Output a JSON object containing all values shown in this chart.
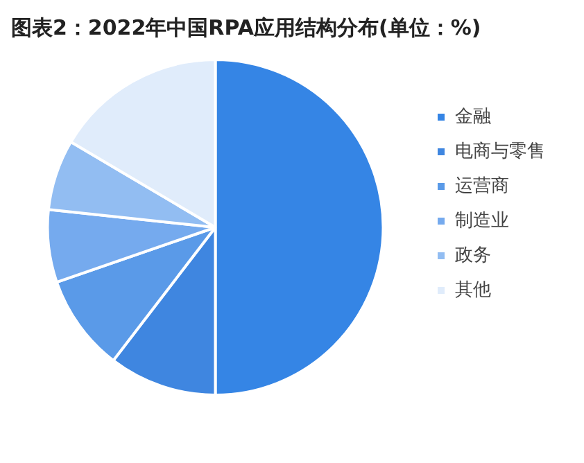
{
  "chart_data": {
    "type": "pie",
    "title": "图表2：2022年中国RPA应用结构分布(单位：%)",
    "categories": [
      "金融",
      "电商与零售",
      "运营商",
      "制造业",
      "政务",
      "其他"
    ],
    "values": [
      50,
      10.4,
      9.3,
      7,
      6.8,
      16.5
    ],
    "colors": [
      "#3585e5",
      "#3f86e0",
      "#5a9ae8",
      "#75aaee",
      "#92bdf2",
      "#e0ecfb"
    ],
    "legend": "right"
  }
}
